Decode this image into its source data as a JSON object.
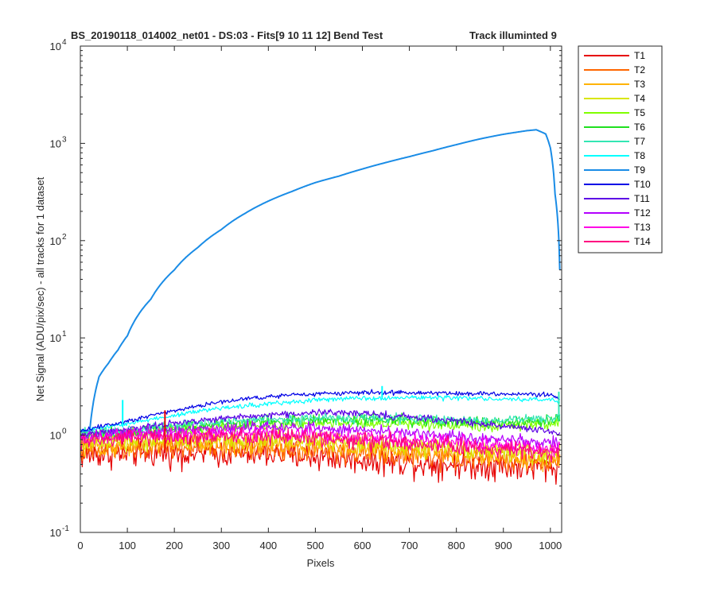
{
  "chart_data": {
    "type": "line",
    "title": "BS_20190118_014002_net01 - DS:03 - Fits[9  10  11  12]   Bend Test",
    "subtitle": "Track illuminted 9",
    "xlabel": "Pixels",
    "ylabel": "Net Signal (ADU/pix/sec) - all tracks for 1 dataset",
    "xlim": [
      0,
      1024
    ],
    "ylim": [
      0.1,
      10000
    ],
    "yscale": "log",
    "x_ticks": [
      0,
      100,
      200,
      300,
      400,
      500,
      600,
      700,
      800,
      900,
      1000
    ],
    "y_ticks": [
      {
        "value": 0.1,
        "base": "10",
        "exp": "-1"
      },
      {
        "value": 1,
        "base": "10",
        "exp": "0"
      },
      {
        "value": 10,
        "base": "10",
        "exp": "1"
      },
      {
        "value": 100,
        "base": "10",
        "exp": "2"
      },
      {
        "value": 1000,
        "base": "10",
        "exp": "3"
      },
      {
        "value": 10000,
        "base": "10",
        "exp": "4"
      }
    ],
    "legend_position": "outside-top-right",
    "series": [
      {
        "name": "T1",
        "color": "#e60000",
        "x": [
          0,
          100,
          200,
          300,
          400,
          500,
          600,
          700,
          800,
          900,
          1000,
          1020
        ],
        "values": [
          0.62,
          0.65,
          0.66,
          0.65,
          0.64,
          0.6,
          0.56,
          0.52,
          0.5,
          0.48,
          0.46,
          0.5
        ],
        "noise": 0.12
      },
      {
        "name": "T2",
        "color": "#ff6600",
        "x": [
          0,
          100,
          200,
          300,
          400,
          500,
          600,
          700,
          800,
          900,
          1000,
          1020
        ],
        "values": [
          0.68,
          0.72,
          0.74,
          0.74,
          0.73,
          0.7,
          0.66,
          0.62,
          0.58,
          0.55,
          0.52,
          0.55
        ],
        "noise": 0.1
      },
      {
        "name": "T3",
        "color": "#ffb300",
        "x": [
          0,
          100,
          200,
          300,
          400,
          500,
          600,
          700,
          800,
          900,
          1000,
          1020
        ],
        "values": [
          0.75,
          0.8,
          0.82,
          0.82,
          0.8,
          0.77,
          0.72,
          0.68,
          0.64,
          0.6,
          0.57,
          0.6
        ],
        "noise": 0.09
      },
      {
        "name": "T4",
        "color": "#d9e600",
        "x": [
          0,
          100,
          200,
          300,
          400,
          500,
          600,
          700,
          800,
          900,
          1000,
          1020
        ],
        "values": [
          0.8,
          0.86,
          0.9,
          0.91,
          0.9,
          0.87,
          0.82,
          0.77,
          0.72,
          0.68,
          0.64,
          0.66
        ],
        "noise": 0.08
      },
      {
        "name": "T5",
        "color": "#80ff00",
        "x": [
          0,
          100,
          200,
          300,
          400,
          500,
          600,
          700,
          800,
          900,
          1000,
          1020
        ],
        "values": [
          0.95,
          1.05,
          1.15,
          1.22,
          1.28,
          1.32,
          1.33,
          1.3,
          1.27,
          1.25,
          1.3,
          1.4
        ],
        "noise": 0.05
      },
      {
        "name": "T6",
        "color": "#1fe01f",
        "x": [
          0,
          100,
          200,
          300,
          400,
          500,
          600,
          700,
          800,
          900,
          1000,
          1020
        ],
        "values": [
          1.0,
          1.08,
          1.2,
          1.3,
          1.38,
          1.42,
          1.43,
          1.4,
          1.37,
          1.35,
          1.4,
          1.5
        ],
        "noise": 0.05
      },
      {
        "name": "T7",
        "color": "#33e6b3",
        "x": [
          0,
          100,
          200,
          300,
          400,
          500,
          600,
          700,
          800,
          900,
          1000,
          1020
        ],
        "values": [
          1.05,
          1.12,
          1.25,
          1.38,
          1.46,
          1.5,
          1.5,
          1.48,
          1.45,
          1.43,
          1.5,
          1.6
        ],
        "noise": 0.04
      },
      {
        "name": "T8",
        "color": "#00ffff",
        "x": [
          0,
          100,
          200,
          300,
          400,
          500,
          600,
          700,
          800,
          900,
          1000,
          1020
        ],
        "values": [
          1.1,
          1.3,
          1.6,
          1.9,
          2.1,
          2.3,
          2.4,
          2.45,
          2.4,
          2.35,
          2.3,
          2.2
        ],
        "noise": 0.02
      },
      {
        "name": "T9",
        "color": "#1a8ce6",
        "x": [
          0,
          20,
          30,
          40,
          60,
          80,
          100,
          150,
          200,
          250,
          300,
          350,
          400,
          450,
          500,
          550,
          600,
          650,
          700,
          750,
          800,
          850,
          900,
          950,
          970,
          990,
          1000,
          1010,
          1020
        ],
        "values": [
          1.1,
          1.1,
          2.5,
          4.0,
          5.5,
          7.5,
          10.5,
          25,
          50,
          85,
          130,
          190,
          255,
          320,
          395,
          460,
          545,
          635,
          730,
          840,
          970,
          1110,
          1240,
          1350,
          1380,
          1250,
          900,
          300,
          50
        ],
        "noise": 0
      },
      {
        "name": "T10",
        "color": "#0000e6",
        "x": [
          0,
          100,
          200,
          300,
          400,
          500,
          600,
          700,
          800,
          900,
          1000,
          1020
        ],
        "values": [
          1.1,
          1.4,
          1.8,
          2.2,
          2.5,
          2.65,
          2.75,
          2.75,
          2.7,
          2.65,
          2.6,
          2.3
        ],
        "noise": 0.02
      },
      {
        "name": "T11",
        "color": "#5c00e6",
        "x": [
          0,
          100,
          200,
          300,
          400,
          500,
          600,
          700,
          800,
          900,
          1000,
          1020
        ],
        "values": [
          1.0,
          1.15,
          1.32,
          1.48,
          1.62,
          1.7,
          1.68,
          1.55,
          1.4,
          1.25,
          1.1,
          1.05
        ],
        "noise": 0.03
      },
      {
        "name": "T12",
        "color": "#b300ff",
        "x": [
          0,
          100,
          200,
          300,
          400,
          500,
          600,
          700,
          800,
          900,
          1000,
          1020
        ],
        "values": [
          0.95,
          1.05,
          1.12,
          1.18,
          1.2,
          1.18,
          1.12,
          1.05,
          0.97,
          0.9,
          0.84,
          0.82
        ],
        "noise": 0.05
      },
      {
        "name": "T13",
        "color": "#ff00e6",
        "x": [
          0,
          100,
          200,
          300,
          400,
          500,
          600,
          700,
          800,
          900,
          1000,
          1020
        ],
        "values": [
          0.9,
          0.98,
          1.02,
          1.05,
          1.05,
          1.02,
          0.96,
          0.9,
          0.84,
          0.78,
          0.74,
          0.73
        ],
        "noise": 0.06
      },
      {
        "name": "T14",
        "color": "#ff0080",
        "x": [
          0,
          100,
          200,
          300,
          400,
          500,
          600,
          700,
          800,
          900,
          1000,
          1020
        ],
        "values": [
          0.85,
          0.92,
          0.96,
          0.98,
          0.97,
          0.93,
          0.88,
          0.82,
          0.76,
          0.7,
          0.66,
          0.65
        ],
        "noise": 0.07
      }
    ],
    "annotations": [
      {
        "series": "T8",
        "x": 90,
        "y": 2.3,
        "type": "spike"
      },
      {
        "series": "T8",
        "x": 642,
        "y": 3.2,
        "type": "spike"
      },
      {
        "series": "T7",
        "x": 1018,
        "y": 2.8,
        "type": "spike"
      },
      {
        "series": "T1",
        "x": 180,
        "y": 1.8,
        "type": "spike"
      }
    ]
  }
}
